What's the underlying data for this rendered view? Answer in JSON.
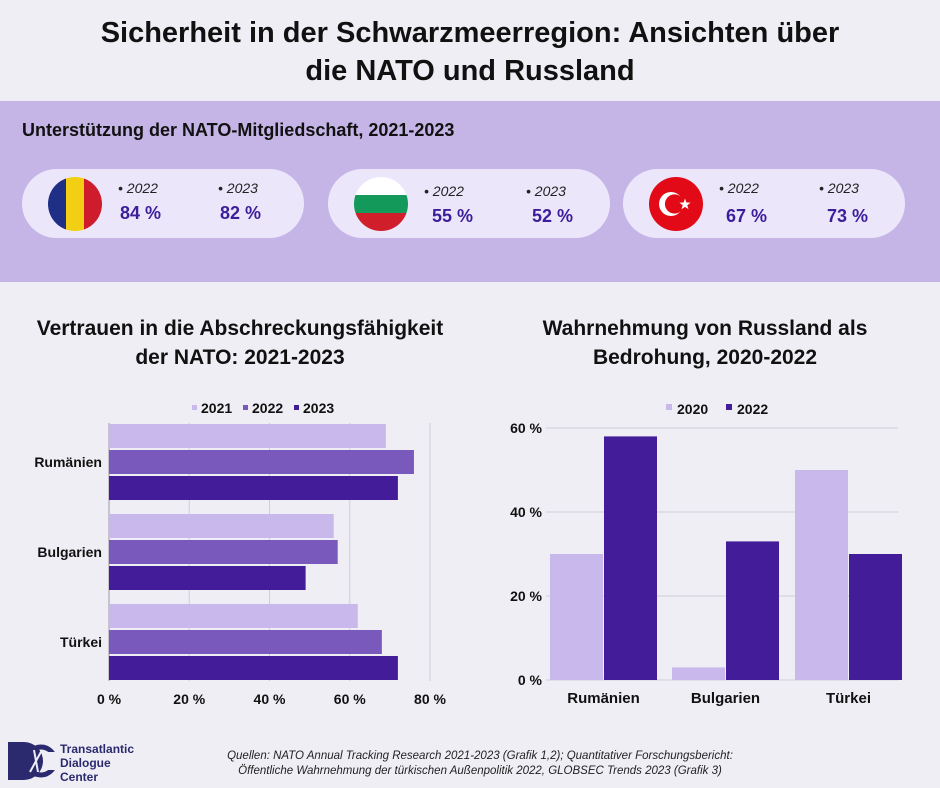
{
  "title_line1": "Sicherheit in der Schwarzmeerregion: Ansichten über",
  "title_line2": "die NATO und Russland",
  "membership": {
    "title": "Unterstützung der NATO-Mitgliedschaft, 2021-2023",
    "cards": [
      {
        "country": "Rumänien",
        "flag": "romania-flag",
        "y1": "• 2022",
        "v1": "84 %",
        "y2": "• 2023",
        "v2": "82 %"
      },
      {
        "country": "Bulgarien",
        "flag": "bulgaria-flag",
        "y1": "• 2022",
        "v1": "55 %",
        "y2": "• 2023",
        "v2": "52 %"
      },
      {
        "country": "Türkei",
        "flag": "turkey-flag",
        "y1": "• 2022",
        "v1": "67 %",
        "y2": "• 2023",
        "v2": "73 %"
      }
    ]
  },
  "chart_data": [
    {
      "type": "bar",
      "orientation": "horizontal",
      "title_line1": "Vertrauen in die Abschreckungsfähigkeit",
      "title_line2": "der NATO: 2021-2023",
      "categories": [
        "Rumänien",
        "Bulgarien",
        "Türkei"
      ],
      "series": [
        {
          "name": "2021",
          "values": [
            69,
            56,
            62
          ],
          "color": "#c9b8ec"
        },
        {
          "name": "2022",
          "values": [
            76,
            57,
            68
          ],
          "color": "#7a59bd"
        },
        {
          "name": "2023",
          "values": [
            72,
            49,
            72
          ],
          "color": "#431c99"
        }
      ],
      "xlim": [
        0,
        80
      ],
      "xticks": [
        "0 %",
        "20 %",
        "40 %",
        "60 %",
        "80 %"
      ],
      "legend": "top"
    },
    {
      "type": "bar",
      "orientation": "vertical",
      "title_line1": "Wahrnehmung von Russland als",
      "title_line2": "Bedrohung, 2020-2022",
      "categories": [
        "Rumänien",
        "Bulgarien",
        "Türkei"
      ],
      "series": [
        {
          "name": "2020",
          "values": [
            30,
            3,
            50
          ],
          "color": "#c9b8ec"
        },
        {
          "name": "2022",
          "values": [
            58,
            33,
            30
          ],
          "color": "#431c99"
        }
      ],
      "ylim": [
        0,
        60
      ],
      "yticks": [
        "0 %",
        "20 %",
        "40 %",
        "60 %"
      ],
      "legend": "top"
    }
  ],
  "source_line1": "Quellen:  NATO Annual Tracking Research 2021-2023 (Grafik 1,2); Quantitativer Forschungsbericht:",
  "source_line2": "Öffentliche Wahrnehmung der türkischen Außenpolitik 2022, GLOBSEC Trends 2023 (Grafik 3)",
  "logo": {
    "line1": "Transatlantic",
    "line2": "Dialogue",
    "line3": "Center"
  }
}
